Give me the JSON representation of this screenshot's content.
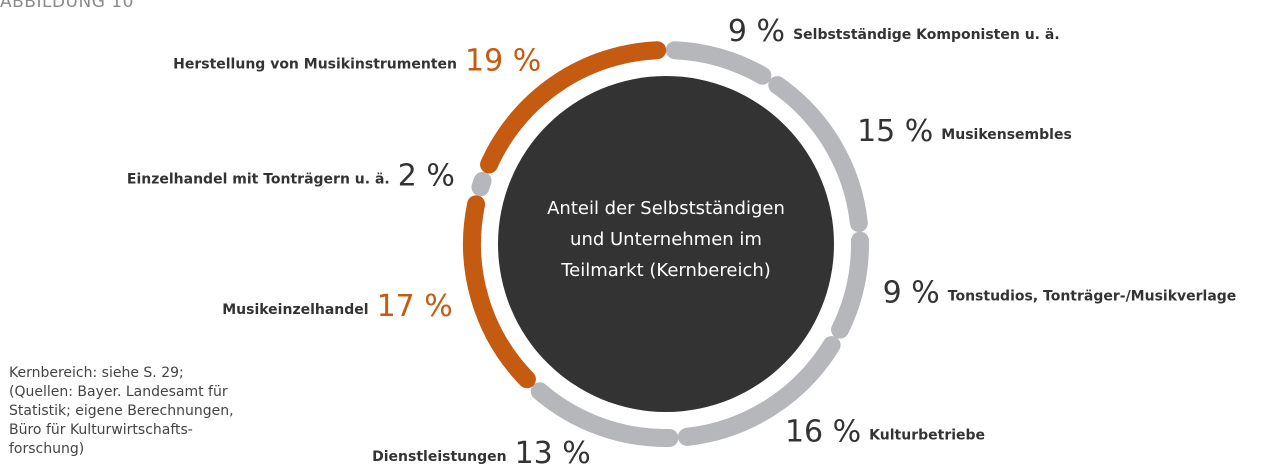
{
  "chart_data": {
    "type": "donut",
    "title": "ABBILDUNG 10",
    "center_label": [
      "Anteil der Selbstständigen",
      "und Unternehmen im",
      "Teilmarkt (Kernbereich)"
    ],
    "note": [
      "Kernbereich: siehe S. 29;",
      "(Quellen: Bayer. Landesamt für",
      "Statistik; eigene Berechnungen,",
      "Büro für Kulturwirtschafts-",
      "forschung)"
    ],
    "categories": [
      "Selbstständige Komponisten u. ä.",
      "Musikensembles",
      "Tonstudios, Tonträger-/Musikverlage",
      "Kulturbetriebe",
      "Dienstleistungen",
      "Musikeinzelhandel",
      "Einzelhandel mit Tonträgern u. ä.",
      "Herstellung von Musikinstrumenten"
    ],
    "values": [
      9,
      15,
      9,
      16,
      13,
      17,
      2,
      19
    ],
    "value_labels": [
      "9 %",
      "15 %",
      "9 %",
      "16 %",
      "13 %",
      "17 %",
      "2 %",
      "19 %"
    ],
    "colors": [
      "#b5b7ba",
      "#b5b7ba",
      "#b5b7ba",
      "#b5b7ba",
      "#b5b7ba",
      "#c55a11",
      "#b5b7ba",
      "#c55a11"
    ]
  }
}
